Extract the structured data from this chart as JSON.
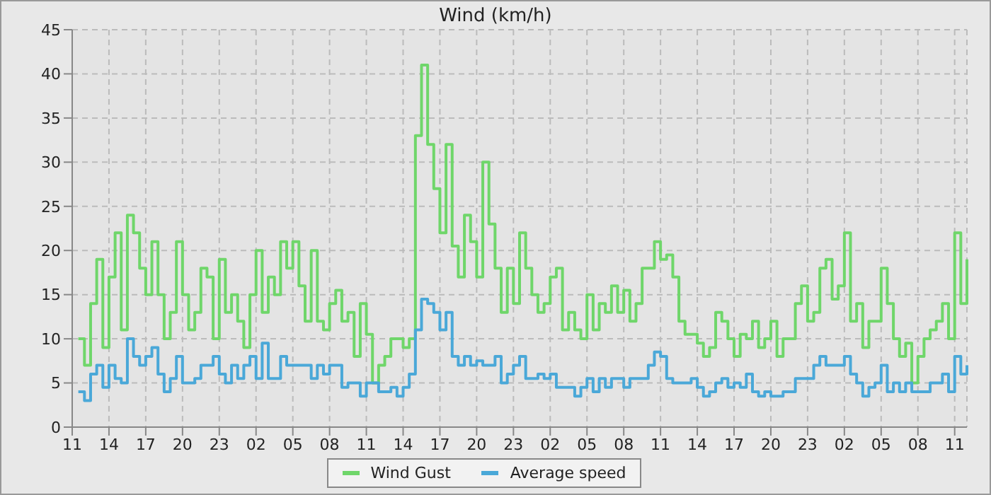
{
  "chart_data": {
    "type": "step",
    "title": "Wind (km/h)",
    "categories": [
      "11",
      null,
      null,
      null,
      null,
      null,
      "14",
      null,
      null,
      null,
      null,
      null,
      "17",
      null,
      null,
      null,
      null,
      null,
      "20",
      null,
      null,
      null,
      null,
      null,
      "23",
      null,
      null,
      null,
      null,
      null,
      "02",
      null,
      null,
      null,
      null,
      null,
      "05",
      null,
      null,
      null,
      null,
      null,
      "08",
      null,
      null,
      null,
      null,
      null,
      "11",
      null,
      null,
      null,
      null,
      null,
      "14",
      null,
      null,
      null,
      null,
      null,
      "17",
      null,
      null,
      null,
      null,
      null,
      "20",
      null,
      null,
      null,
      null,
      null,
      "23",
      null,
      null,
      null,
      null,
      null,
      "02",
      null,
      null,
      null,
      null,
      null,
      "05",
      null,
      null,
      null,
      null,
      null,
      "08",
      null,
      null,
      null,
      null,
      null,
      "11",
      null,
      null,
      null,
      null,
      null,
      "14",
      null,
      null,
      null,
      null,
      null,
      "17",
      null,
      null,
      null,
      null,
      null,
      "20",
      null,
      null,
      null,
      null,
      null,
      "23",
      null,
      null,
      null,
      null,
      null,
      "02",
      null,
      null,
      null,
      null,
      null,
      "05",
      null,
      null,
      null,
      null,
      null,
      "08",
      null,
      null,
      null,
      null,
      null,
      "11",
      null,
      null
    ],
    "ylim": [
      0,
      45
    ],
    "yticks": [
      0,
      5,
      10,
      15,
      20,
      25,
      30,
      35,
      40,
      45
    ],
    "grid": true,
    "legend": "bottom",
    "series": [
      {
        "name": "Wind Gust",
        "color": "#6fd66a",
        "values": [
          null,
          10,
          7,
          14,
          19,
          9,
          17,
          22,
          11,
          24,
          22,
          18,
          15,
          21,
          15,
          10,
          13,
          21,
          15,
          11,
          13,
          18,
          17,
          10,
          19,
          13,
          15,
          12,
          9,
          15,
          20,
          13,
          17,
          15,
          21,
          18,
          21,
          16,
          12,
          20,
          12,
          11,
          14,
          15.5,
          12,
          13,
          8,
          14,
          10.5,
          5,
          7,
          8,
          10,
          10,
          9,
          10,
          33,
          41,
          32,
          27,
          22,
          32,
          20.5,
          17,
          24,
          21,
          17,
          30,
          23,
          18,
          13,
          18,
          14,
          22,
          18,
          15,
          13,
          14,
          17,
          18,
          11,
          13,
          11,
          10,
          15,
          11,
          14,
          13,
          16,
          13,
          15.5,
          12,
          14,
          18,
          18,
          21,
          19,
          19.5,
          17,
          12,
          10.5,
          10.5,
          9.5,
          8,
          9,
          13,
          12,
          10,
          8,
          10.5,
          10,
          12,
          9,
          10,
          12,
          8,
          10,
          10,
          14,
          16,
          12,
          13,
          18,
          19,
          14.5,
          16,
          22,
          12,
          14,
          9,
          12,
          12,
          18,
          14,
          10,
          8,
          9.5,
          5,
          8,
          10,
          11,
          12,
          14,
          10,
          22,
          14,
          19
        ]
      },
      {
        "name": "Average speed",
        "color": "#4aa8d8",
        "values": [
          null,
          4,
          3,
          6,
          7,
          4.5,
          7,
          5.5,
          5,
          10,
          8,
          7,
          8,
          9,
          6,
          4,
          5.5,
          8,
          5,
          5,
          5.5,
          7,
          7,
          8,
          6,
          5,
          7,
          5.5,
          7,
          8,
          5.5,
          9.5,
          5.5,
          5.5,
          8,
          7,
          7,
          7,
          7,
          5.5,
          7,
          6,
          7,
          7,
          4.5,
          5,
          5,
          3.5,
          5,
          5,
          4,
          4,
          4.5,
          3.5,
          4.5,
          6,
          11,
          14.5,
          14,
          13,
          11,
          13,
          8,
          7,
          8,
          7,
          7.5,
          7,
          7,
          8,
          5,
          6,
          7,
          8,
          5.5,
          5.5,
          6,
          5.5,
          6,
          4.5,
          4.5,
          4.5,
          3.5,
          4.5,
          5.5,
          4,
          5.5,
          4.5,
          5.5,
          5.5,
          4.5,
          5.5,
          5.5,
          5.5,
          7,
          8.5,
          8,
          5.5,
          5,
          5,
          5,
          5.5,
          4.5,
          3.5,
          4,
          5,
          5.5,
          4.5,
          5,
          4.5,
          6,
          4,
          3.5,
          4,
          3.5,
          3.5,
          4,
          4,
          5.5,
          5.5,
          5.5,
          7,
          8,
          7,
          7,
          7,
          8,
          6,
          5,
          3.5,
          4.5,
          5,
          7,
          4,
          5,
          4,
          5,
          4,
          4,
          4,
          5,
          5,
          6,
          4,
          8,
          6,
          7
        ]
      }
    ]
  }
}
